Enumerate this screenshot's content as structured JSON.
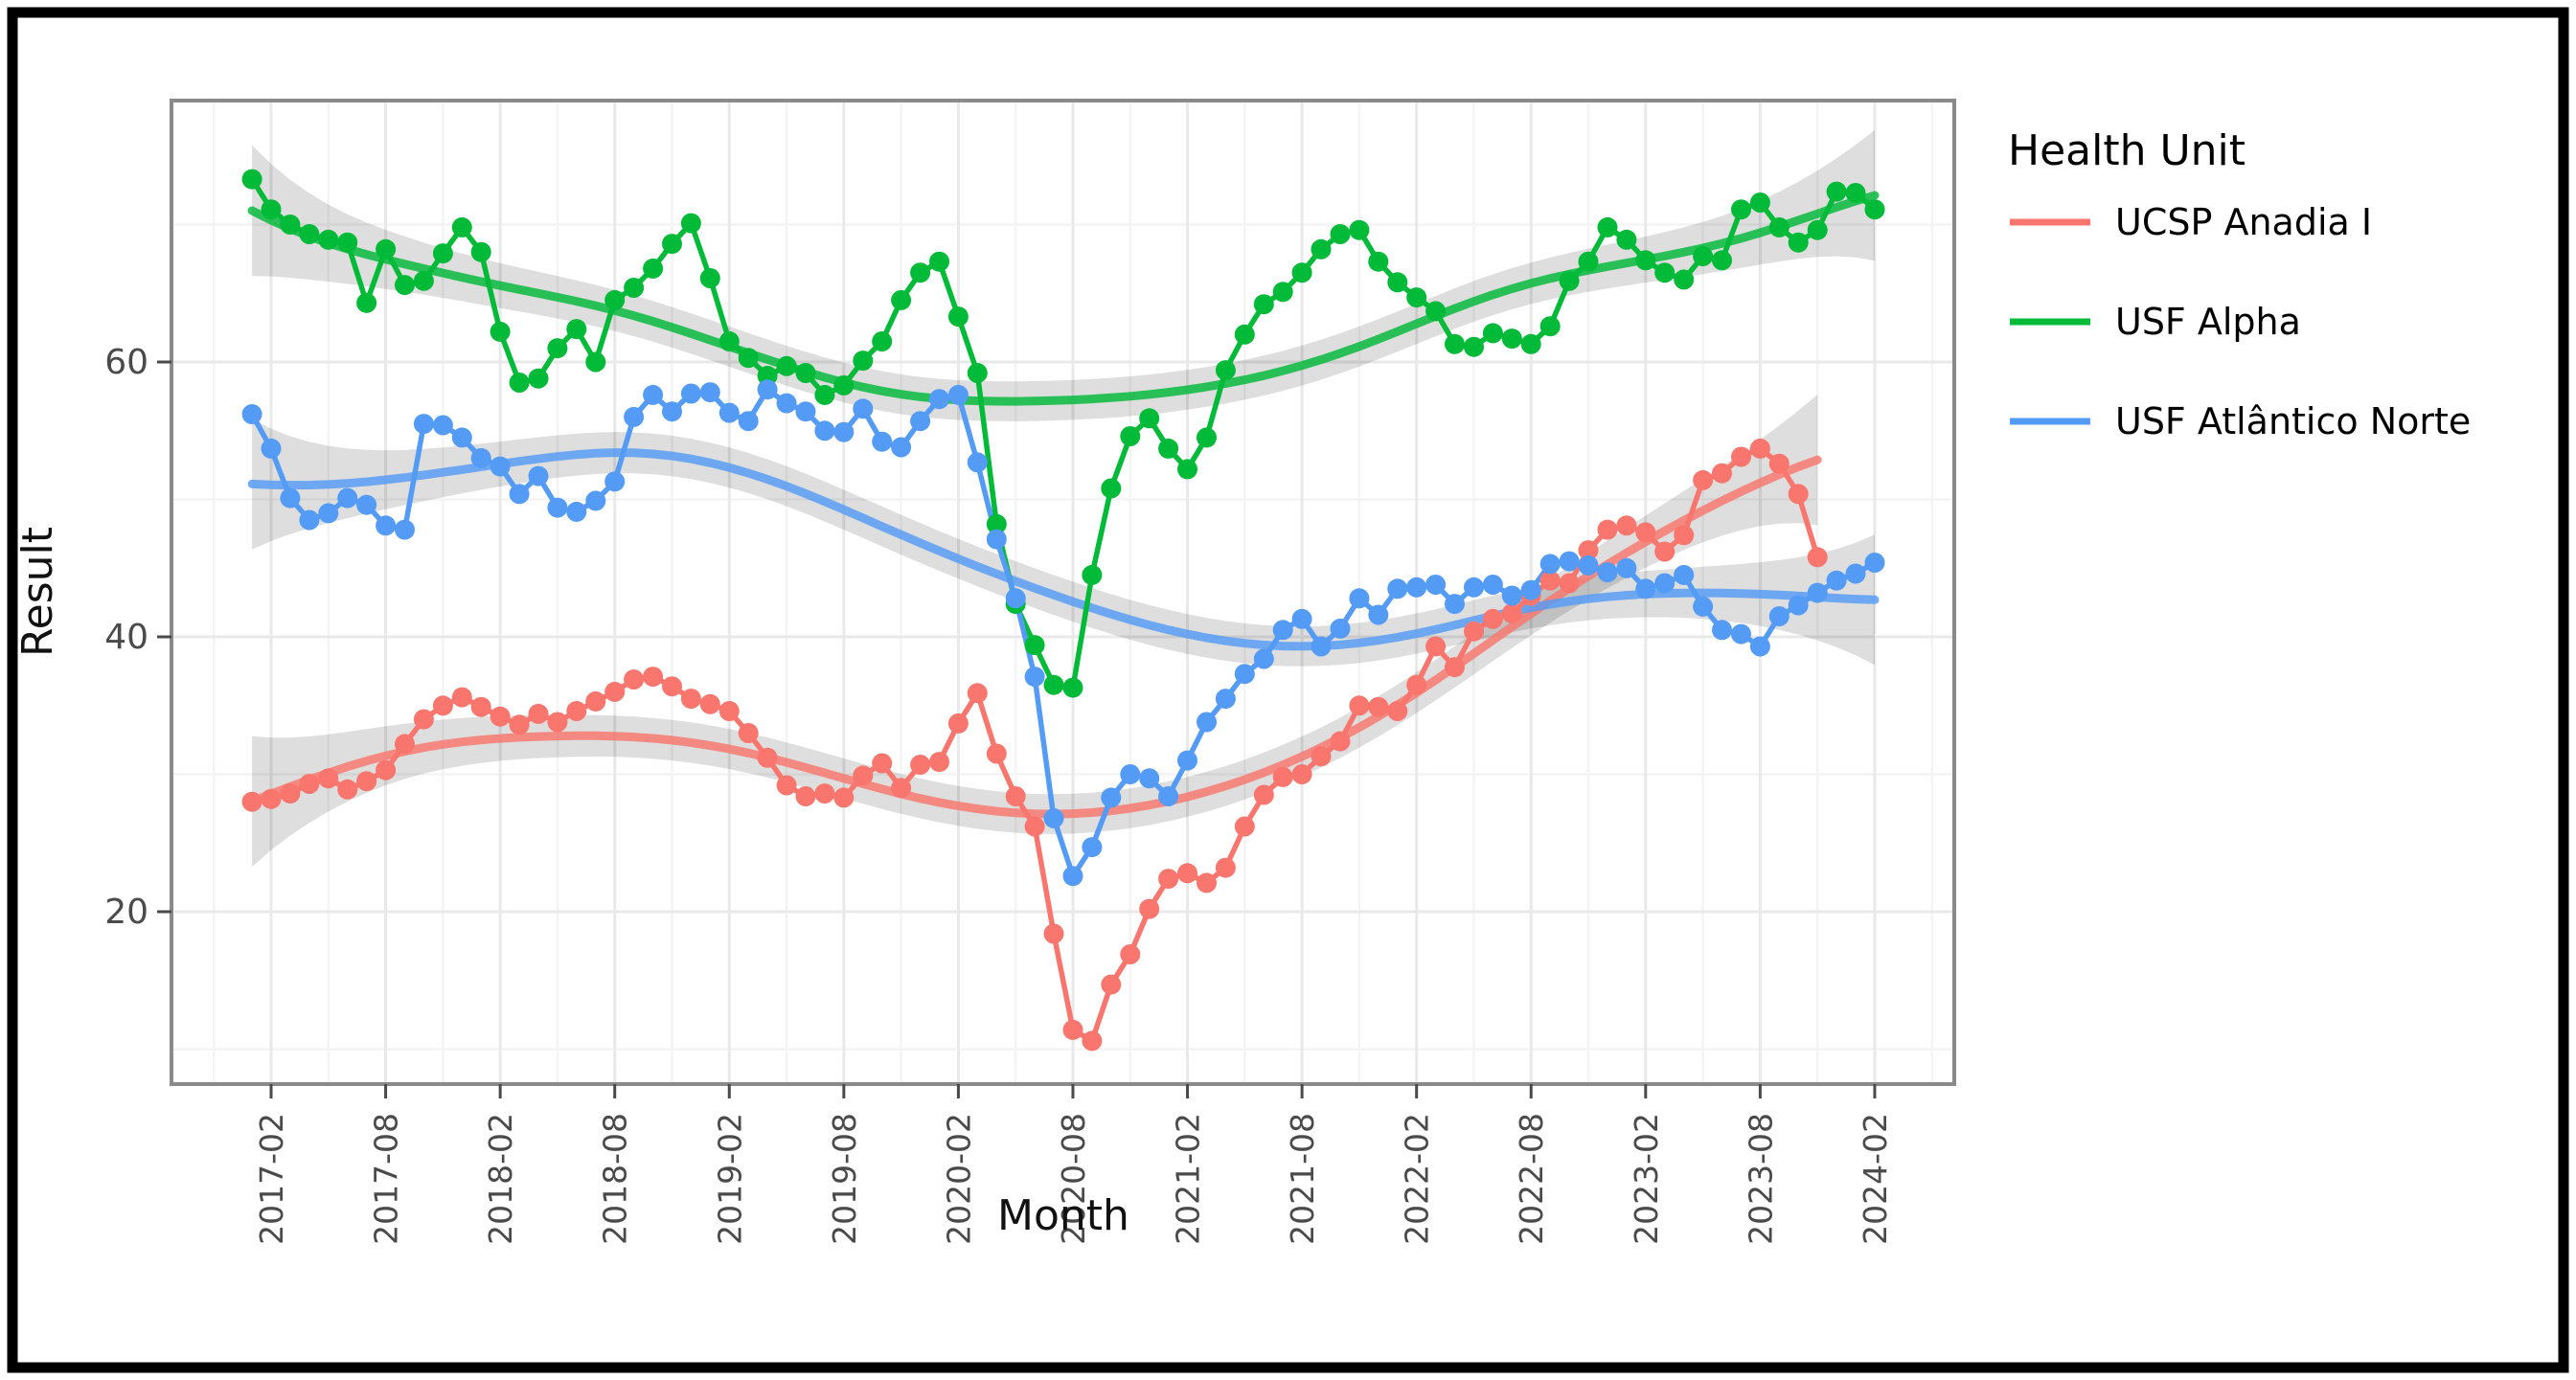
{
  "chart_data": {
    "type": "scatter",
    "title": "",
    "xlabel": "Month",
    "ylabel": "Result",
    "legend_title": "Health Unit",
    "legend_position": "right",
    "grid": "on",
    "x_start": "2017-01",
    "x_tick_labels": [
      "2017-02",
      "2017-08",
      "2018-02",
      "2018-08",
      "2019-02",
      "2019-08",
      "2020-02",
      "2020-08",
      "2021-02",
      "2021-08",
      "2022-02",
      "2022-08",
      "2023-02",
      "2023-08",
      "2024-02"
    ],
    "y_ticks": [
      20,
      40,
      60
    ],
    "ylim": [
      7.5,
      79
    ],
    "point_style": "dot-with-line",
    "smoother": "loess-with-confidence-band",
    "band_color": "rgba(0,0,0,0.13)",
    "series": [
      {
        "name": "UCSP Anadia I",
        "color": "#F8766D",
        "start": "2017-01",
        "end": "2023-11",
        "values": [
          28.0,
          28.2,
          28.6,
          29.3,
          29.7,
          28.9,
          29.5,
          30.3,
          32.2,
          34.0,
          35.0,
          35.6,
          34.9,
          34.2,
          33.6,
          34.4,
          33.8,
          34.6,
          35.3,
          36.0,
          36.9,
          37.1,
          36.4,
          35.5,
          35.1,
          34.6,
          33.0,
          31.2,
          29.2,
          28.4,
          28.6,
          28.3,
          29.9,
          30.8,
          29.0,
          30.7,
          30.9,
          33.7,
          35.9,
          31.5,
          28.4,
          26.2,
          18.4,
          11.4,
          10.6,
          14.7,
          16.9,
          20.2,
          22.4,
          22.8,
          22.1,
          23.2,
          26.2,
          28.5,
          29.8,
          30.0,
          31.3,
          32.4,
          35.0,
          34.9,
          34.6,
          36.5,
          39.3,
          37.8,
          40.4,
          41.3,
          41.7,
          43.0,
          44.1,
          43.9,
          46.3,
          47.8,
          48.1,
          47.6,
          46.2,
          47.4,
          51.4,
          51.9,
          53.1,
          53.7,
          52.6,
          50.4,
          45.8
        ]
      },
      {
        "name": "USF Alpha",
        "color": "#00BA38",
        "start": "2017-01",
        "end": "2024-02",
        "values": [
          73.3,
          71.1,
          70.0,
          69.3,
          68.9,
          68.7,
          64.3,
          68.2,
          65.6,
          65.9,
          67.9,
          69.8,
          68.0,
          62.2,
          58.5,
          58.8,
          61.0,
          62.4,
          60.0,
          64.5,
          65.4,
          66.8,
          68.6,
          70.1,
          66.1,
          61.5,
          60.3,
          59.0,
          59.7,
          59.2,
          57.6,
          58.3,
          60.1,
          61.5,
          64.5,
          66.5,
          67.3,
          63.3,
          59.2,
          48.2,
          42.4,
          39.4,
          36.5,
          36.3,
          44.5,
          50.8,
          54.6,
          55.9,
          53.7,
          52.2,
          54.5,
          59.4,
          62.0,
          64.2,
          65.1,
          66.5,
          68.2,
          69.3,
          69.6,
          67.3,
          65.8,
          64.7,
          63.7,
          61.3,
          61.1,
          62.1,
          61.7,
          61.3,
          62.6,
          65.9,
          67.3,
          69.8,
          68.9,
          67.4,
          66.5,
          66.0,
          67.7,
          67.4,
          71.1,
          71.6,
          69.8,
          68.7,
          69.6,
          72.4,
          72.3,
          71.1
        ]
      },
      {
        "name": "USF Atlântico Norte",
        "color": "#549BF5",
        "start": "2017-01",
        "end": "2024-02",
        "values": [
          56.2,
          53.7,
          50.1,
          48.5,
          49.0,
          50.1,
          49.6,
          48.1,
          47.8,
          55.5,
          55.4,
          54.5,
          53.0,
          52.4,
          50.4,
          51.7,
          49.4,
          49.1,
          49.9,
          51.3,
          56.0,
          57.6,
          56.4,
          57.7,
          57.8,
          56.3,
          55.7,
          58.0,
          57.0,
          56.4,
          55.0,
          54.9,
          56.6,
          54.2,
          53.8,
          55.7,
          57.3,
          57.6,
          52.7,
          47.1,
          42.8,
          37.1,
          26.8,
          22.6,
          24.7,
          28.3,
          30.0,
          29.7,
          28.4,
          31.0,
          33.8,
          35.5,
          37.3,
          38.4,
          40.5,
          41.3,
          39.3,
          40.6,
          42.8,
          41.6,
          43.5,
          43.6,
          43.8,
          42.4,
          43.6,
          43.8,
          43.0,
          43.4,
          45.3,
          45.5,
          45.2,
          44.7,
          45.0,
          43.5,
          43.9,
          44.5,
          42.2,
          40.5,
          40.2,
          39.3,
          41.5,
          42.3,
          43.2,
          44.1,
          44.6,
          45.4
        ]
      }
    ]
  }
}
